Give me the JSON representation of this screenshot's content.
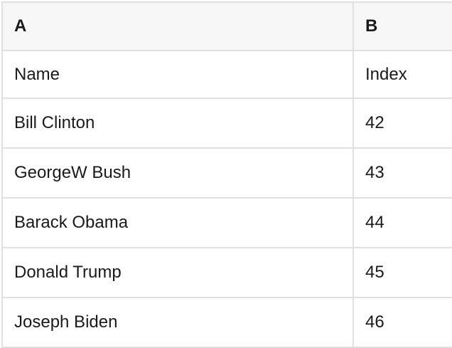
{
  "colors": {
    "page_bg": "#ffffff",
    "header_bg": "#f7f7f7",
    "border": "#e0e0e0",
    "text": "#1a1a1a"
  },
  "spreadsheet": {
    "column_headers": [
      {
        "label": "A"
      },
      {
        "label": "B"
      }
    ],
    "rows": [
      {
        "a": "Name",
        "b": "Index"
      },
      {
        "a": "Bill Clinton",
        "b": "42"
      },
      {
        "a": "GeorgeW Bush",
        "b": "43"
      },
      {
        "a": "Barack Obama",
        "b": "44"
      },
      {
        "a": "Donald Trump",
        "b": "45"
      },
      {
        "a": "Joseph Biden",
        "b": "46"
      }
    ]
  }
}
